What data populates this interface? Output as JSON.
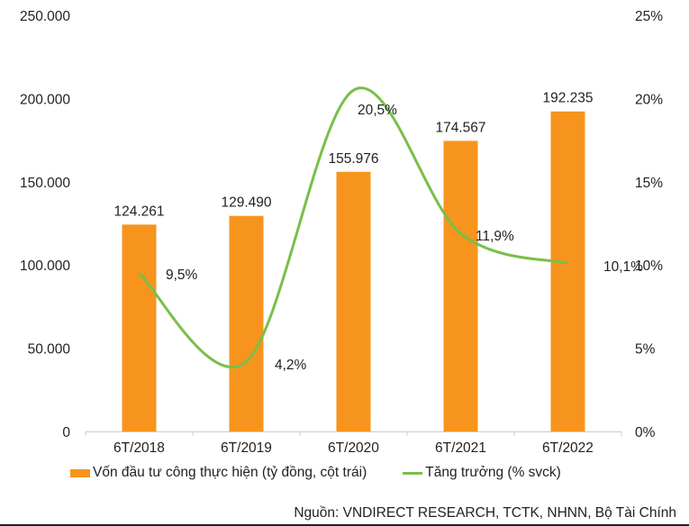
{
  "chart_data": {
    "type": "bar+line",
    "categories": [
      "6T/2018",
      "6T/2019",
      "6T/2020",
      "6T/2021",
      "6T/2022"
    ],
    "series": [
      {
        "name": "Vốn đầu tư công thực hiện (tỷ đồng, cột trái)",
        "type": "bar",
        "axis": "left",
        "values": [
          124261,
          129490,
          155976,
          174567,
          192235
        ],
        "labels": [
          "124.261",
          "129.490",
          "155.976",
          "174.567",
          "192.235"
        ],
        "color": "#F7941D"
      },
      {
        "name": "Tăng trưởng (% svck)",
        "type": "line",
        "axis": "right",
        "values": [
          9.5,
          4.2,
          20.5,
          11.9,
          10.1
        ],
        "labels": [
          "9,5%",
          "4,2%",
          "20,5%",
          "11,9%",
          "10,1%"
        ],
        "color": "#79BF4A",
        "smooth": true
      }
    ],
    "left_axis": {
      "ylim": [
        0,
        250000
      ],
      "ticks": [
        "0",
        "50.000",
        "100.000",
        "150.000",
        "200.000",
        "250.000"
      ]
    },
    "right_axis": {
      "ylim": [
        0,
        25
      ],
      "ticks": [
        "0%",
        "5%",
        "10%",
        "15%",
        "20%",
        "25%"
      ]
    },
    "grid": false,
    "legend": "bottom"
  },
  "source": "Nguồn: VNDIRECT RESEARCH, TCTK, NHNN, Bộ Tài Chính"
}
